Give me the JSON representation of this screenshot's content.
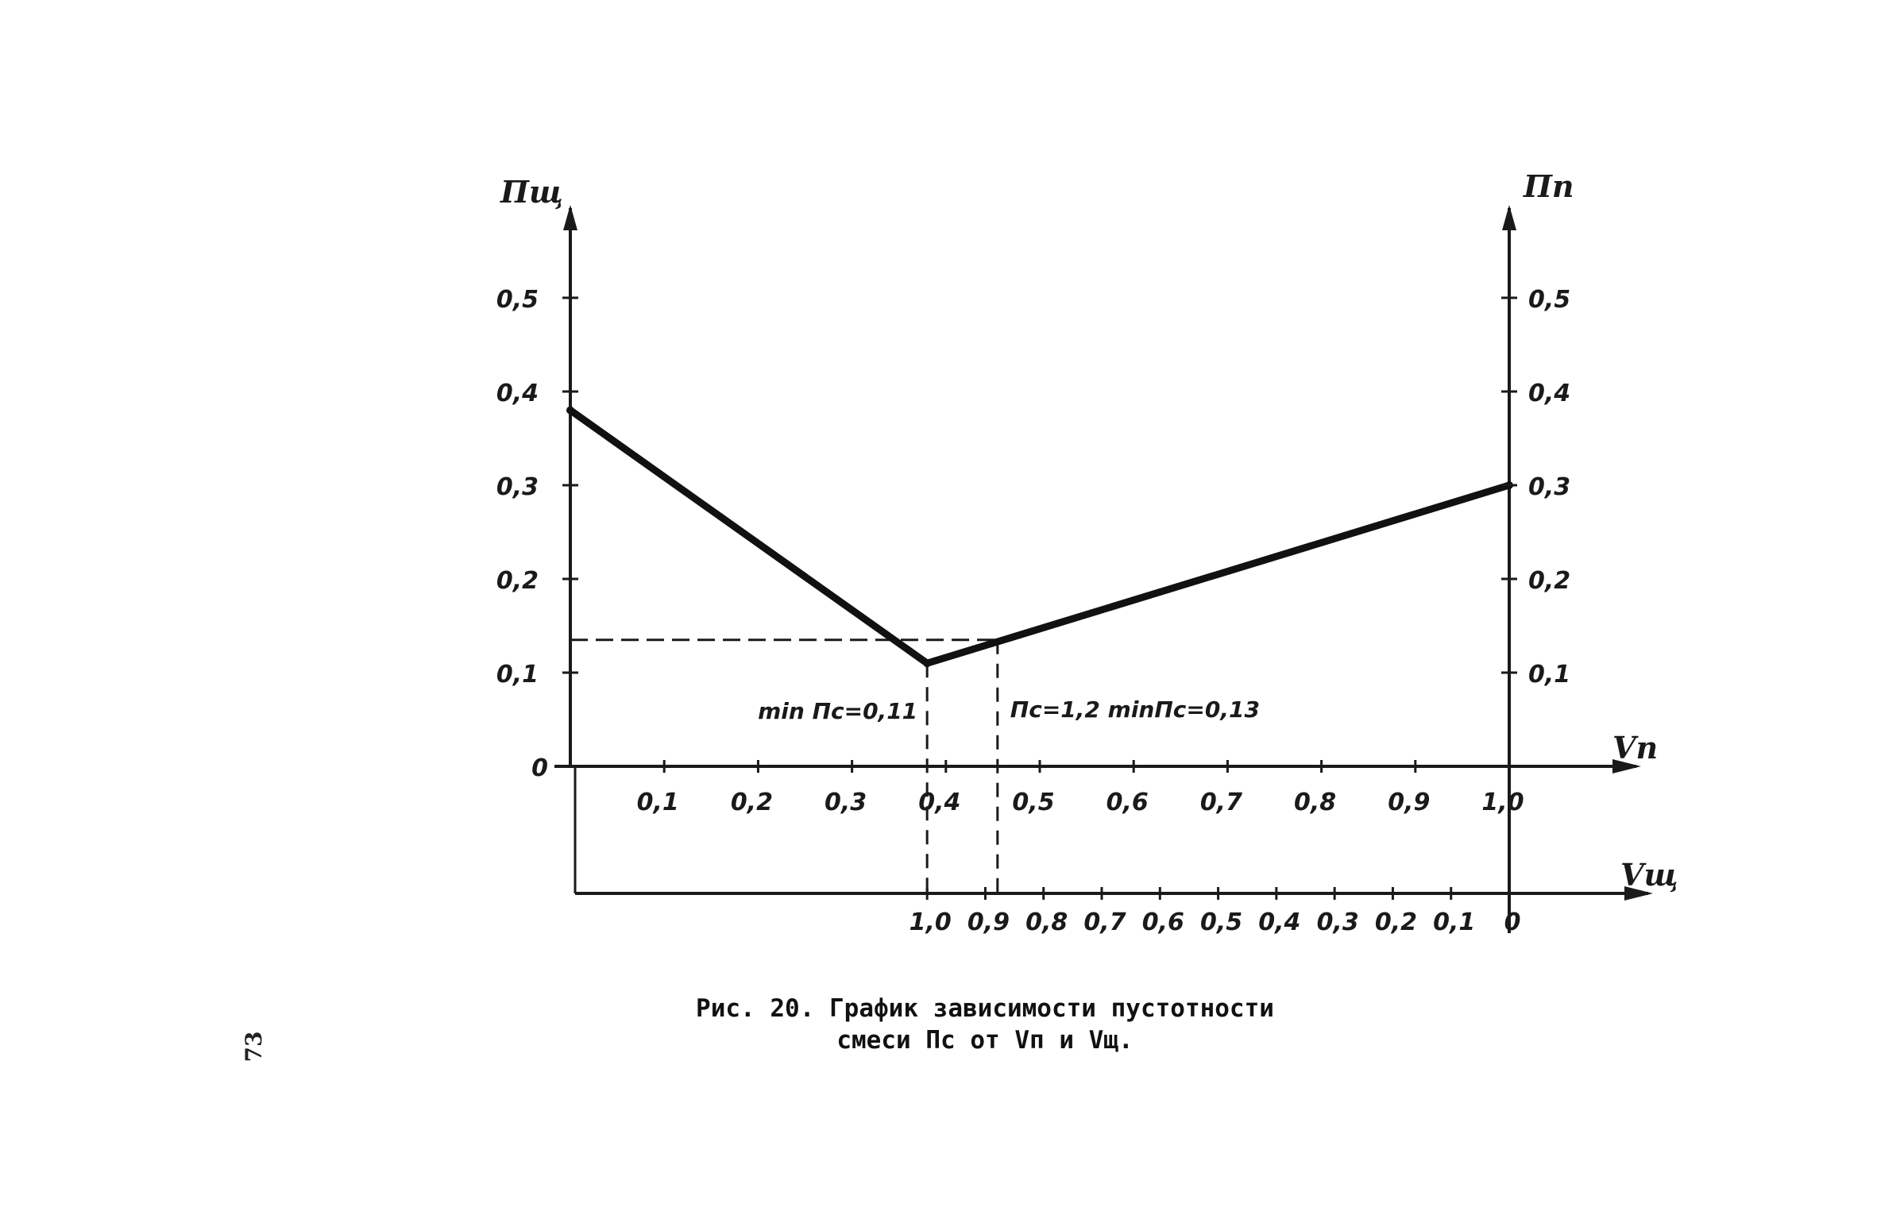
{
  "chart_data": {
    "type": "line",
    "left_axis_title": "Пщ",
    "right_axis_title": "Пп",
    "x_axis_title": "Vп",
    "x2_axis_title": "Vщ",
    "ylim": [
      0,
      0.6
    ],
    "xlim": [
      0,
      1.0
    ],
    "y_ticks_left": [
      "0,1",
      "0,2",
      "0,3",
      "0,4",
      "0,5"
    ],
    "y_ticks_right": [
      "0,1",
      "0,2",
      "0,3",
      "0,4",
      "0,5"
    ],
    "origin_label": "0",
    "x_ticks": [
      "0,1",
      "0,2",
      "0,3",
      "0,4",
      "0,5",
      "0,6",
      "0,7",
      "0,8",
      "0,9",
      "1,0"
    ],
    "x2_ticks": [
      "1,0",
      "0,9",
      "0,8",
      "0,7",
      "0,6",
      "0,5",
      "0,4",
      "0,3",
      "0,2",
      "0,1",
      "0"
    ],
    "series": [
      {
        "points": [
          [
            0,
            0.38
          ],
          [
            0.38,
            0.11
          ],
          [
            1.0,
            0.3
          ]
        ]
      }
    ],
    "reference_lines": {
      "horizontal_y": 0.135,
      "vertical_x": [
        0.38,
        0.455
      ]
    },
    "annotations": {
      "min_label": "min Пс=0,11",
      "right_label": "Пс=1,2 minПс=0,13"
    },
    "grid": false,
    "legend": "none"
  },
  "caption": {
    "line1": "Рис. 20. График зависимости пустотности",
    "line2": "смеси Пс от Vп и Vщ."
  },
  "page_number": "73"
}
